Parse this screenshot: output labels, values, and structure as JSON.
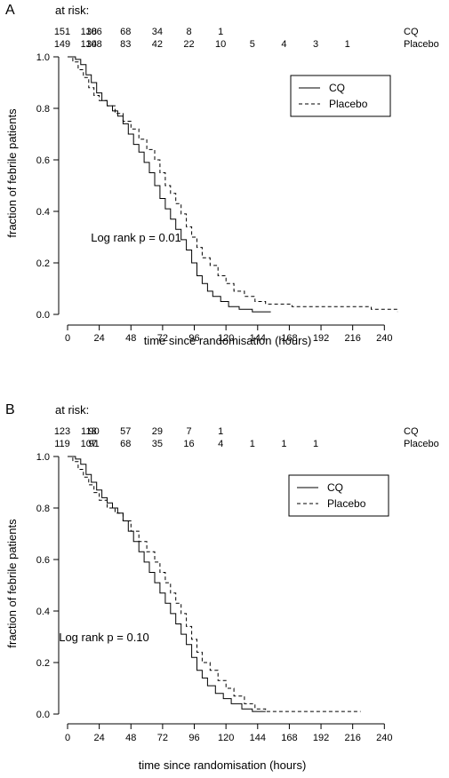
{
  "chart_data": [
    {
      "panel_label": "A",
      "type": "line",
      "subtype": "kaplan-meier step curves",
      "at_risk": {
        "title": "at risk:",
        "times": [
          0,
          12,
          24,
          48,
          72,
          96,
          120,
          144,
          168,
          192,
          216,
          240
        ],
        "CQ": [
          "151",
          "138",
          "106",
          "68",
          "34",
          "8",
          "1",
          "",
          "",
          "",
          "",
          ""
        ],
        "Placebo": [
          "149",
          "134",
          "108",
          "83",
          "42",
          "22",
          "10",
          "5",
          "4",
          "3",
          "1",
          ""
        ],
        "row_labels": [
          "CQ",
          "Placebo"
        ]
      },
      "xlabel": "time since randomisation (hours)",
      "ylabel": "fraction of febrile patients",
      "xlim": [
        0,
        250
      ],
      "ylim": [
        0,
        1
      ],
      "x_ticks": [
        0,
        24,
        48,
        72,
        96,
        120,
        144,
        168,
        192,
        216,
        240
      ],
      "y_ticks": [
        "0.0",
        "0.2",
        "0.4",
        "0.6",
        "0.8",
        "1.0"
      ],
      "legend": {
        "entries": [
          "CQ",
          "Placebo"
        ],
        "position": "top-right"
      },
      "annotation": "Log rank p = 0.01",
      "series": [
        {
          "name": "CQ",
          "line": "solid",
          "steps": [
            [
              0,
              1
            ],
            [
              6,
              0.99
            ],
            [
              10,
              0.97
            ],
            [
              14,
              0.93
            ],
            [
              18,
              0.9
            ],
            [
              22,
              0.86
            ],
            [
              26,
              0.83
            ],
            [
              30,
              0.81
            ],
            [
              34,
              0.79
            ],
            [
              38,
              0.77
            ],
            [
              42,
              0.74
            ],
            [
              46,
              0.7
            ],
            [
              50,
              0.66
            ],
            [
              54,
              0.63
            ],
            [
              58,
              0.59
            ],
            [
              62,
              0.55
            ],
            [
              66,
              0.5
            ],
            [
              70,
              0.45
            ],
            [
              74,
              0.41
            ],
            [
              78,
              0.37
            ],
            [
              82,
              0.33
            ],
            [
              86,
              0.29
            ],
            [
              90,
              0.25
            ],
            [
              94,
              0.2
            ],
            [
              98,
              0.15
            ],
            [
              102,
              0.12
            ],
            [
              106,
              0.09
            ],
            [
              110,
              0.07
            ],
            [
              116,
              0.05
            ],
            [
              122,
              0.03
            ],
            [
              130,
              0.02
            ],
            [
              140,
              0.01
            ],
            [
              154,
              0.01
            ]
          ]
        },
        {
          "name": "Placebo",
          "line": "dashed",
          "steps": [
            [
              0,
              1
            ],
            [
              4,
              0.98
            ],
            [
              8,
              0.95
            ],
            [
              12,
              0.92
            ],
            [
              16,
              0.88
            ],
            [
              20,
              0.85
            ],
            [
              24,
              0.83
            ],
            [
              30,
              0.81
            ],
            [
              36,
              0.78
            ],
            [
              42,
              0.75
            ],
            [
              48,
              0.72
            ],
            [
              54,
              0.68
            ],
            [
              60,
              0.64
            ],
            [
              66,
              0.6
            ],
            [
              70,
              0.55
            ],
            [
              74,
              0.5
            ],
            [
              78,
              0.47
            ],
            [
              82,
              0.43
            ],
            [
              86,
              0.39
            ],
            [
              90,
              0.34
            ],
            [
              94,
              0.3
            ],
            [
              98,
              0.26
            ],
            [
              102,
              0.22
            ],
            [
              108,
              0.19
            ],
            [
              114,
              0.15
            ],
            [
              120,
              0.12
            ],
            [
              126,
              0.09
            ],
            [
              134,
              0.07
            ],
            [
              142,
              0.05
            ],
            [
              150,
              0.04
            ],
            [
              170,
              0.03
            ],
            [
              200,
              0.03
            ],
            [
              230,
              0.02
            ],
            [
              250,
              0.01
            ]
          ]
        }
      ]
    },
    {
      "panel_label": "B",
      "type": "line",
      "subtype": "kaplan-meier step curves",
      "at_risk": {
        "title": "at risk:",
        "times": [
          0,
          12,
          24,
          48,
          72,
          96,
          120,
          144,
          168,
          192,
          216,
          240
        ],
        "CQ": [
          "123",
          "113",
          "90",
          "57",
          "29",
          "7",
          "1",
          "",
          "",
          "",
          "",
          ""
        ],
        "Placebo": [
          "119",
          "107",
          "91",
          "68",
          "35",
          "16",
          "4",
          "1",
          "1",
          "1",
          "",
          ""
        ],
        "row_labels": [
          "CQ",
          "Placebo"
        ]
      },
      "xlabel": "time since randomisation (hours)",
      "ylabel": "fraction of febrile patients",
      "xlim": [
        0,
        240
      ],
      "ylim": [
        0,
        1
      ],
      "x_ticks": [
        0,
        24,
        48,
        72,
        96,
        120,
        144,
        168,
        192,
        216,
        240
      ],
      "y_ticks": [
        "0.0",
        "0.2",
        "0.4",
        "0.6",
        "0.8",
        "1.0"
      ],
      "legend": {
        "entries": [
          "CQ",
          "Placebo"
        ],
        "position": "top-right"
      },
      "annotation": "Log rank p = 0.10",
      "series": [
        {
          "name": "CQ",
          "line": "solid",
          "steps": [
            [
              0,
              1
            ],
            [
              6,
              0.99
            ],
            [
              10,
              0.97
            ],
            [
              14,
              0.93
            ],
            [
              18,
              0.9
            ],
            [
              22,
              0.87
            ],
            [
              26,
              0.84
            ],
            [
              30,
              0.82
            ],
            [
              34,
              0.8
            ],
            [
              38,
              0.78
            ],
            [
              42,
              0.75
            ],
            [
              46,
              0.71
            ],
            [
              50,
              0.67
            ],
            [
              54,
              0.63
            ],
            [
              58,
              0.59
            ],
            [
              62,
              0.55
            ],
            [
              66,
              0.51
            ],
            [
              70,
              0.47
            ],
            [
              74,
              0.43
            ],
            [
              78,
              0.39
            ],
            [
              82,
              0.35
            ],
            [
              86,
              0.31
            ],
            [
              90,
              0.27
            ],
            [
              94,
              0.22
            ],
            [
              98,
              0.17
            ],
            [
              102,
              0.14
            ],
            [
              106,
              0.11
            ],
            [
              112,
              0.08
            ],
            [
              118,
              0.06
            ],
            [
              124,
              0.04
            ],
            [
              132,
              0.02
            ],
            [
              140,
              0.01
            ],
            [
              150,
              0.01
            ]
          ]
        },
        {
          "name": "Placebo",
          "line": "dashed",
          "steps": [
            [
              0,
              1
            ],
            [
              4,
              0.98
            ],
            [
              8,
              0.95
            ],
            [
              12,
              0.92
            ],
            [
              16,
              0.89
            ],
            [
              20,
              0.86
            ],
            [
              24,
              0.83
            ],
            [
              30,
              0.8
            ],
            [
              36,
              0.78
            ],
            [
              42,
              0.75
            ],
            [
              48,
              0.71
            ],
            [
              54,
              0.67
            ],
            [
              60,
              0.63
            ],
            [
              66,
              0.59
            ],
            [
              70,
              0.55
            ],
            [
              74,
              0.51
            ],
            [
              78,
              0.47
            ],
            [
              82,
              0.43
            ],
            [
              86,
              0.39
            ],
            [
              90,
              0.34
            ],
            [
              94,
              0.29
            ],
            [
              98,
              0.24
            ],
            [
              102,
              0.2
            ],
            [
              108,
              0.17
            ],
            [
              114,
              0.13
            ],
            [
              120,
              0.1
            ],
            [
              126,
              0.07
            ],
            [
              134,
              0.04
            ],
            [
              142,
              0.02
            ],
            [
              150,
              0.01
            ],
            [
              180,
              0.01
            ],
            [
              200,
              0.01
            ],
            [
              222,
              0.01
            ]
          ]
        }
      ]
    }
  ]
}
